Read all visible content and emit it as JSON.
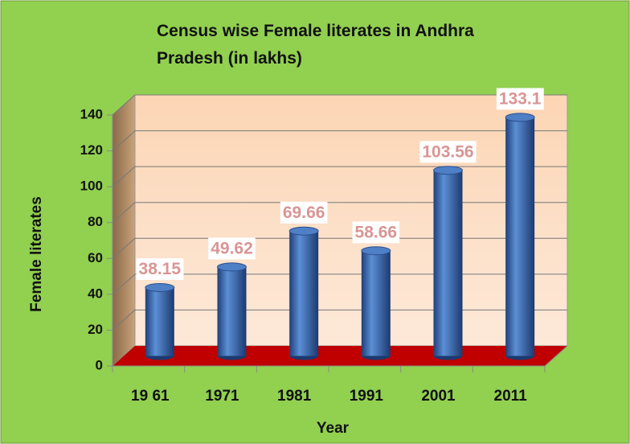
{
  "chart_data": {
    "type": "bar3d",
    "title": "Census wise Female literates in Andhra Pradesh (in lakhs)",
    "x_label": "Year",
    "y_label": "Female  literates",
    "categories": [
      "19 61",
      "1971",
      "1981",
      "1991",
      "2001",
      "2011"
    ],
    "values": [
      38.15,
      49.62,
      69.66,
      58.66,
      103.56,
      133.1
    ],
    "color": "#3f6fb5",
    "ylim": [
      0,
      140
    ],
    "yticks": [
      0,
      20,
      40,
      60,
      80,
      100,
      120,
      140
    ],
    "grid": true
  }
}
